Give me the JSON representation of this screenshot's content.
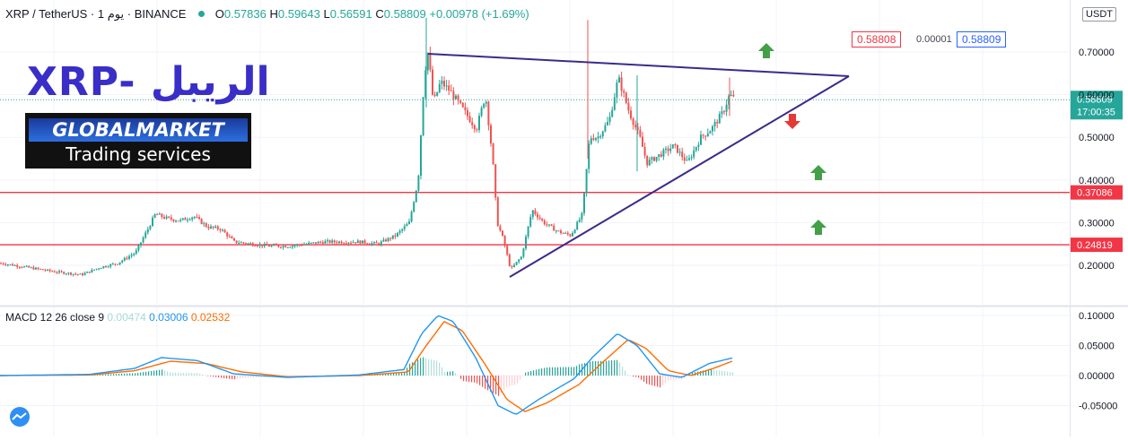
{
  "header": {
    "symbol": "XRP / TetherUS",
    "interval": "1 يوم",
    "exchange": "BINANCE",
    "o_label": "O",
    "o": "0.57836",
    "h_label": "H",
    "h": "0.59643",
    "l_label": "L",
    "l": "0.56591",
    "c_label": "C",
    "c": "0.58809",
    "change": "+0.00978 (+1.69%)"
  },
  "brand": {
    "title": "XRP- الريبل",
    "logo_top": "GLOBALMARKET",
    "logo_bottom": "Trading services"
  },
  "price_tags": {
    "bid": "0.58808",
    "spread": "0.00001",
    "ask": "0.58809",
    "last_price": "0.58809",
    "countdown": "17:00:35",
    "level_upper": "0.37086",
    "level_lower": "0.24819",
    "currency": "USDT"
  },
  "macd": {
    "label": "MACD 12 26 close 9",
    "hist": "0.00474",
    "macd": "0.03006",
    "signal": "0.02532"
  },
  "colors": {
    "up": "#26a69a",
    "down": "#ef5350",
    "level": "#f23645",
    "trend": "#3c2a8c",
    "macd": "#2196f3",
    "signal": "#ff6d00",
    "hist_up": "#26a69a",
    "hist_down": "#ef5350",
    "arrow_up": "#43a047",
    "arrow_down": "#e53935"
  },
  "chart_data": [
    {
      "type": "candlestick",
      "title": "",
      "y_axis_ticks": [
        "0.70000",
        "0.60000",
        "0.50000",
        "0.40000",
        "0.30000",
        "0.20000"
      ],
      "ylim": [
        0.135,
        0.795
      ],
      "last_price": 0.58809,
      "horizontal_levels": [
        0.37086,
        0.24819
      ],
      "trendlines": [
        {
          "from": [
            0,
            0.695
          ],
          "to": [
            1,
            0.645
          ],
          "note": "upper"
        },
        {
          "from": [
            0,
            0.18
          ],
          "to": [
            1,
            0.645
          ],
          "note": "lower"
        }
      ],
      "price_path": [
        [
          0,
          0.205
        ],
        [
          30,
          0.195
        ],
        [
          60,
          0.185
        ],
        [
          90,
          0.178
        ],
        [
          110,
          0.195
        ],
        [
          130,
          0.205
        ],
        [
          150,
          0.23
        ],
        [
          165,
          0.29
        ],
        [
          172,
          0.32
        ],
        [
          185,
          0.31
        ],
        [
          200,
          0.305
        ],
        [
          215,
          0.315
        ],
        [
          230,
          0.29
        ],
        [
          245,
          0.285
        ],
        [
          260,
          0.255
        ],
        [
          280,
          0.25
        ],
        [
          300,
          0.245
        ],
        [
          320,
          0.245
        ],
        [
          340,
          0.25
        ],
        [
          360,
          0.255
        ],
        [
          380,
          0.255
        ],
        [
          400,
          0.255
        ],
        [
          420,
          0.25
        ],
        [
          440,
          0.27
        ],
        [
          455,
          0.3
        ],
        [
          465,
          0.4
        ],
        [
          472,
          0.65
        ],
        [
          476,
          0.7
        ],
        [
          482,
          0.58
        ],
        [
          490,
          0.63
        ],
        [
          500,
          0.61
        ],
        [
          510,
          0.58
        ],
        [
          520,
          0.55
        ],
        [
          530,
          0.52
        ],
        [
          540,
          0.6
        ],
        [
          548,
          0.45
        ],
        [
          553,
          0.3
        ],
        [
          560,
          0.26
        ],
        [
          568,
          0.19
        ],
        [
          580,
          0.22
        ],
        [
          592,
          0.33
        ],
        [
          605,
          0.3
        ],
        [
          620,
          0.28
        ],
        [
          635,
          0.27
        ],
        [
          648,
          0.32
        ],
        [
          656,
          0.5
        ],
        [
          665,
          0.5
        ],
        [
          678,
          0.54
        ],
        [
          688,
          0.64
        ],
        [
          700,
          0.56
        ],
        [
          712,
          0.5
        ],
        [
          720,
          0.44
        ],
        [
          735,
          0.46
        ],
        [
          750,
          0.48
        ],
        [
          765,
          0.44
        ],
        [
          780,
          0.5
        ],
        [
          792,
          0.52
        ],
        [
          805,
          0.56
        ],
        [
          812,
          0.6
        ],
        [
          818,
          0.588
        ]
      ]
    },
    {
      "type": "macd",
      "y_axis_ticks": [
        "0.10000",
        "0.05000",
        "0.00000",
        "-0.05000"
      ],
      "ylim": [
        -0.065,
        0.112
      ],
      "macd_path": [
        [
          0,
          0
        ],
        [
          100,
          0.002
        ],
        [
          150,
          0.012
        ],
        [
          180,
          0.03
        ],
        [
          220,
          0.025
        ],
        [
          260,
          0.003
        ],
        [
          320,
          -0.003
        ],
        [
          400,
          0.001
        ],
        [
          450,
          0.01
        ],
        [
          470,
          0.07
        ],
        [
          488,
          0.1
        ],
        [
          505,
          0.09
        ],
        [
          530,
          0.03
        ],
        [
          555,
          -0.05
        ],
        [
          575,
          -0.065
        ],
        [
          600,
          -0.04
        ],
        [
          640,
          -0.005
        ],
        [
          660,
          0.03
        ],
        [
          688,
          0.07
        ],
        [
          710,
          0.05
        ],
        [
          735,
          0.003
        ],
        [
          760,
          -0.003
        ],
        [
          790,
          0.02
        ],
        [
          818,
          0.03
        ]
      ],
      "signal_path": [
        [
          0,
          0
        ],
        [
          100,
          0.001
        ],
        [
          150,
          0.008
        ],
        [
          190,
          0.024
        ],
        [
          230,
          0.02
        ],
        [
          270,
          0.006
        ],
        [
          320,
          -0.002
        ],
        [
          400,
          0.0
        ],
        [
          455,
          0.006
        ],
        [
          475,
          0.05
        ],
        [
          495,
          0.09
        ],
        [
          515,
          0.075
        ],
        [
          540,
          0.02
        ],
        [
          565,
          -0.04
        ],
        [
          585,
          -0.06
        ],
        [
          610,
          -0.045
        ],
        [
          645,
          -0.015
        ],
        [
          670,
          0.02
        ],
        [
          700,
          0.06
        ],
        [
          720,
          0.045
        ],
        [
          745,
          0.008
        ],
        [
          770,
          0.0
        ],
        [
          795,
          0.012
        ],
        [
          818,
          0.025
        ]
      ]
    }
  ]
}
